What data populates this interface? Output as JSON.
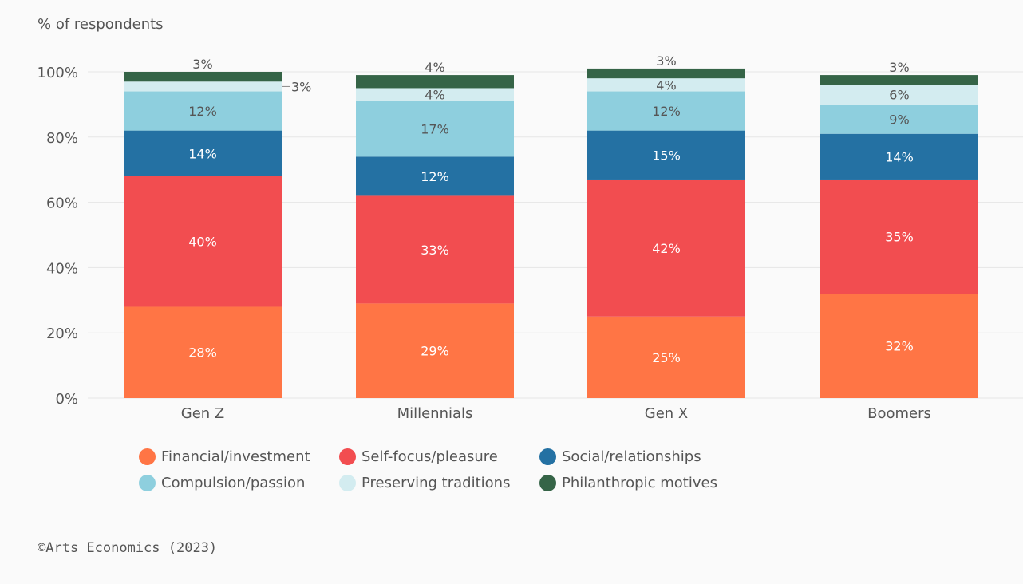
{
  "chart_data": {
    "type": "bar",
    "stacked": true,
    "ylabel": "% of respondents",
    "ylim": [
      0,
      100
    ],
    "yticks": [
      "0%",
      "20%",
      "40%",
      "60%",
      "80%",
      "100%"
    ],
    "categories": [
      "Gen Z",
      "Millennials",
      "Gen X",
      "Boomers"
    ],
    "series": [
      {
        "name": "Financial/investment",
        "color": "#ff7545",
        "values": [
          28,
          29,
          25,
          32
        ],
        "labels": [
          "28%",
          "29%",
          "25%",
          "32%"
        ]
      },
      {
        "name": "Self-focus/pleasure",
        "color": "#f24d50",
        "values": [
          40,
          33,
          42,
          35
        ],
        "labels": [
          "40%",
          "33%",
          "42%",
          "35%"
        ]
      },
      {
        "name": "Social/relationships",
        "color": "#2471a3",
        "values": [
          14,
          12,
          15,
          14
        ],
        "labels": [
          "14%",
          "12%",
          "15%",
          "14%"
        ]
      },
      {
        "name": "Compulsion/passion",
        "color": "#8ecfde",
        "values": [
          12,
          17,
          12,
          9
        ],
        "labels": [
          "12%",
          "17%",
          "12%",
          "9%"
        ]
      },
      {
        "name": "Preserving traditions",
        "color": "#d3ecf0",
        "values": [
          3,
          4,
          4,
          6
        ],
        "labels": [
          "3%",
          "4%",
          "4%",
          "6%"
        ]
      },
      {
        "name": "Philanthropic motives",
        "color": "#356447",
        "values": [
          3,
          4,
          3,
          3
        ],
        "labels": [
          "3%",
          "4%",
          "3%",
          "3%"
        ]
      }
    ],
    "grid": true,
    "legend_position": "bottom"
  },
  "source": "©Arts Economics (2023)"
}
